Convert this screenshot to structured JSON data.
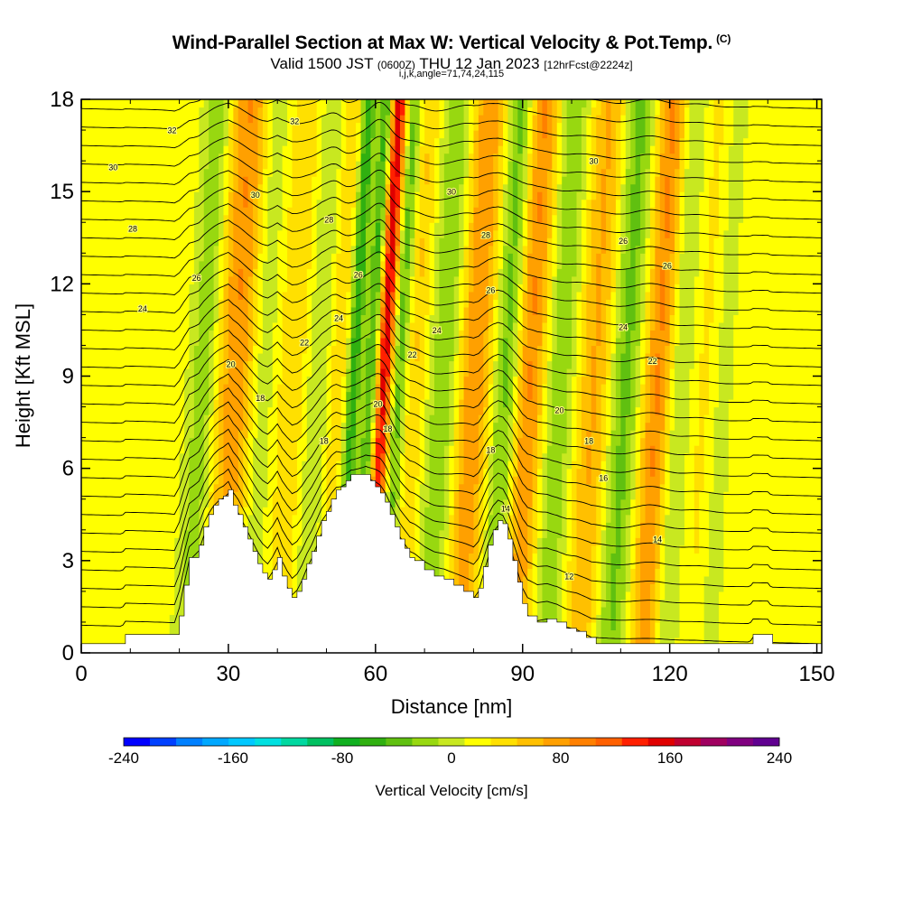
{
  "header": {
    "title": "Wind-Parallel Section at Max W: Vertical Velocity & Pot.Temp.",
    "title_units": "(C)",
    "valid_prefix": "Valid 1500 JST",
    "valid_utc": "(0600Z)",
    "valid_date": "THU 12 Jan 2023",
    "forecast": "[12hrFcst@2224z]",
    "indices": "i,j,k,angle=71,74,24,115"
  },
  "chart_data": {
    "type": "heatmap",
    "xlabel": "Distance [nm]",
    "ylabel": "Height [Kft MSL]",
    "xlim": [
      0,
      151
    ],
    "ylim": [
      0,
      18
    ],
    "xticks": [
      0,
      30,
      60,
      90,
      120,
      150
    ],
    "yticks": [
      0,
      3,
      6,
      9,
      12,
      15,
      18
    ],
    "colorbar": {
      "label": "Vertical Velocity [cm/s]",
      "range": [
        -240,
        240
      ],
      "ticks": [
        -240,
        -160,
        -80,
        0,
        80,
        160,
        240
      ],
      "colors": [
        "#0000ff",
        "#0040ff",
        "#0080ff",
        "#00a8ff",
        "#00c8ff",
        "#00e0e0",
        "#00d8a0",
        "#00c060",
        "#10b020",
        "#30b010",
        "#60c010",
        "#98d810",
        "#c8e820",
        "#ffff00",
        "#ffe000",
        "#ffc000",
        "#ffa000",
        "#ff8000",
        "#ff6000",
        "#ff2000",
        "#e00000",
        "#c00030",
        "#a00060",
        "#800080",
        "#600090"
      ]
    },
    "updraft_bands": [
      {
        "x": 30.5,
        "w": 3.0,
        "amp": 70
      },
      {
        "x": 42,
        "w": 2.0,
        "amp": 30
      },
      {
        "x": 51,
        "w": 2.0,
        "amp": 35
      },
      {
        "x": 60.5,
        "w": 1.6,
        "amp": 180
      },
      {
        "x": 66.5,
        "w": 2.0,
        "amp": 40
      },
      {
        "x": 79,
        "w": 2.5,
        "amp": 70
      },
      {
        "x": 90.5,
        "w": 3.0,
        "amp": 85
      },
      {
        "x": 104,
        "w": 3.0,
        "amp": 60
      },
      {
        "x": 117,
        "w": 3.0,
        "amp": 85
      },
      {
        "x": 127,
        "w": 2.0,
        "amp": 25
      }
    ],
    "downdraft_bands": [
      {
        "x": 24,
        "w": 2.0,
        "amp": 45
      },
      {
        "x": 35.5,
        "w": 2.0,
        "amp": 30
      },
      {
        "x": 48,
        "w": 2.0,
        "amp": 35
      },
      {
        "x": 54.5,
        "w": 1.0,
        "amp": 90
      },
      {
        "x": 58.5,
        "w": 1.2,
        "amp": 130
      },
      {
        "x": 63.5,
        "w": 1.5,
        "amp": 90
      },
      {
        "x": 73,
        "w": 2.5,
        "amp": 45
      },
      {
        "x": 86,
        "w": 2.0,
        "amp": 75
      },
      {
        "x": 96,
        "w": 3.0,
        "amp": 55
      },
      {
        "x": 110,
        "w": 3.0,
        "amp": 65
      },
      {
        "x": 120.5,
        "w": 2.0,
        "amp": 60
      },
      {
        "x": 129,
        "w": 2.0,
        "amp": 25
      }
    ],
    "terrain": [
      [
        0,
        0.3
      ],
      [
        8,
        0.3
      ],
      [
        9,
        0.6
      ],
      [
        19,
        0.6
      ],
      [
        20,
        1.2
      ],
      [
        21,
        2.2
      ],
      [
        22,
        3.1
      ],
      [
        24,
        3.5
      ],
      [
        25,
        4.1
      ],
      [
        26,
        4.5
      ],
      [
        27,
        4.8
      ],
      [
        28,
        5.0
      ],
      [
        29,
        5.1
      ],
      [
        30,
        5.3
      ],
      [
        31,
        4.8
      ],
      [
        32,
        4.5
      ],
      [
        33,
        4.1
      ],
      [
        34,
        3.7
      ],
      [
        35,
        3.3
      ],
      [
        36,
        2.9
      ],
      [
        37,
        2.6
      ],
      [
        38,
        2.4
      ],
      [
        39,
        2.7
      ],
      [
        40,
        3.1
      ],
      [
        41,
        2.5
      ],
      [
        42,
        2.1
      ],
      [
        43,
        1.8
      ],
      [
        44,
        2.0
      ],
      [
        45,
        2.4
      ],
      [
        46,
        2.9
      ],
      [
        47,
        3.3
      ],
      [
        48,
        3.8
      ],
      [
        49,
        4.3
      ],
      [
        50,
        4.6
      ],
      [
        51,
        5.0
      ],
      [
        52,
        5.3
      ],
      [
        53,
        5.4
      ],
      [
        54,
        5.6
      ],
      [
        55,
        5.8
      ],
      [
        56,
        5.8
      ],
      [
        57,
        5.8
      ],
      [
        58,
        5.8
      ],
      [
        59,
        5.6
      ],
      [
        60,
        5.4
      ],
      [
        61,
        5.2
      ],
      [
        62,
        4.9
      ],
      [
        63,
        4.5
      ],
      [
        64,
        4.1
      ],
      [
        65,
        3.7
      ],
      [
        66,
        3.4
      ],
      [
        67,
        3.1
      ],
      [
        68,
        3.0
      ],
      [
        70,
        2.7
      ],
      [
        72,
        2.5
      ],
      [
        74,
        2.4
      ],
      [
        76,
        2.2
      ],
      [
        78,
        2.0
      ],
      [
        80,
        1.8
      ],
      [
        81,
        2.1
      ],
      [
        82,
        2.8
      ],
      [
        83,
        3.5
      ],
      [
        84,
        4.0
      ],
      [
        85,
        4.3
      ],
      [
        86,
        4.2
      ],
      [
        87,
        3.7
      ],
      [
        88,
        3.0
      ],
      [
        89,
        2.3
      ],
      [
        90,
        1.6
      ],
      [
        91,
        1.2
      ],
      [
        93,
        1.0
      ],
      [
        95,
        1.1
      ],
      [
        97,
        1.0
      ],
      [
        99,
        0.8
      ],
      [
        101,
        0.7
      ],
      [
        103,
        0.5
      ],
      [
        105,
        0.3
      ],
      [
        110,
        0.3
      ],
      [
        136,
        0.3
      ],
      [
        137,
        0.6
      ],
      [
        140,
        0.6
      ],
      [
        141,
        0.3
      ],
      [
        151,
        0.3
      ]
    ],
    "isentropes": {
      "label_field": "potential temperature (C)",
      "labels": [
        {
          "text": "32",
          "x": 18.5,
          "y": 17.0
        },
        {
          "text": "32",
          "x": 43.5,
          "y": 17.3
        },
        {
          "text": "30",
          "x": 6.5,
          "y": 15.8
        },
        {
          "text": "30",
          "x": 35.5,
          "y": 14.9
        },
        {
          "text": "30",
          "x": 75.5,
          "y": 15.0
        },
        {
          "text": "30",
          "x": 104.5,
          "y": 16.0
        },
        {
          "text": "28",
          "x": 10.5,
          "y": 13.8
        },
        {
          "text": "28",
          "x": 50.5,
          "y": 14.1
        },
        {
          "text": "28",
          "x": 82.5,
          "y": 13.6
        },
        {
          "text": "26",
          "x": 110.5,
          "y": 13.4
        },
        {
          "text": "26",
          "x": 23.5,
          "y": 12.2
        },
        {
          "text": "26",
          "x": 56.5,
          "y": 12.3
        },
        {
          "text": "26",
          "x": 83.5,
          "y": 11.8
        },
        {
          "text": "26",
          "x": 119.5,
          "y": 12.6
        },
        {
          "text": "24",
          "x": 12.5,
          "y": 11.2
        },
        {
          "text": "24",
          "x": 52.5,
          "y": 10.9
        },
        {
          "text": "24",
          "x": 72.5,
          "y": 10.5
        },
        {
          "text": "24",
          "x": 110.5,
          "y": 10.6
        },
        {
          "text": "22",
          "x": 45.5,
          "y": 10.1
        },
        {
          "text": "22",
          "x": 67.5,
          "y": 9.7
        },
        {
          "text": "22",
          "x": 116.5,
          "y": 9.5
        },
        {
          "text": "20",
          "x": 30.5,
          "y": 9.4
        },
        {
          "text": "20",
          "x": 60.5,
          "y": 8.1
        },
        {
          "text": "20",
          "x": 97.5,
          "y": 7.9
        },
        {
          "text": "18",
          "x": 36.5,
          "y": 8.3
        },
        {
          "text": "18",
          "x": 62.5,
          "y": 7.3
        },
        {
          "text": "18",
          "x": 49.5,
          "y": 6.9
        },
        {
          "text": "18",
          "x": 83.5,
          "y": 6.6
        },
        {
          "text": "18",
          "x": 103.5,
          "y": 6.9
        },
        {
          "text": "16",
          "x": 106.5,
          "y": 5.7
        },
        {
          "text": "14",
          "x": 86.5,
          "y": 4.7
        },
        {
          "text": "14",
          "x": 117.5,
          "y": 3.7
        },
        {
          "text": "12",
          "x": 99.5,
          "y": 2.5
        }
      ]
    }
  }
}
